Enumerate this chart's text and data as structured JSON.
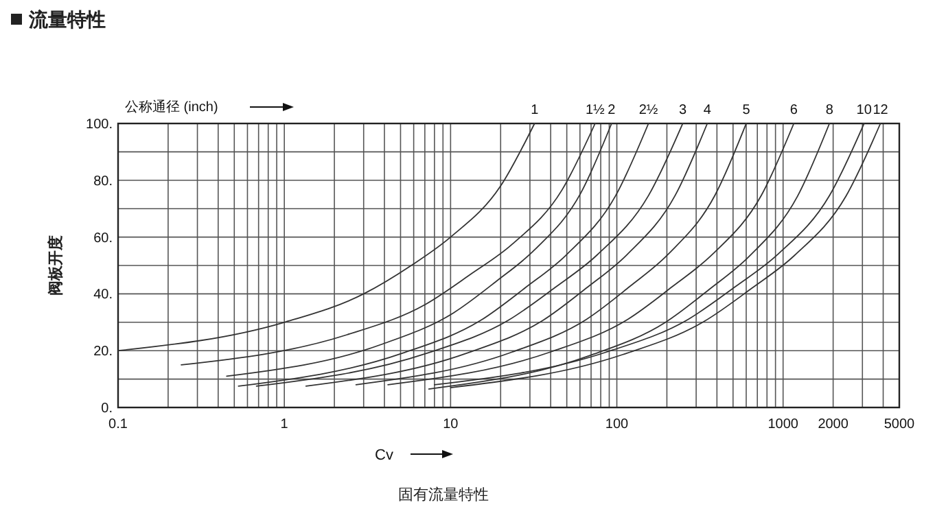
{
  "chart_data": {
    "type": "line",
    "title": "流量特性",
    "xlabel": "Cv",
    "ylabel": "阀板开度",
    "legend_title": "公称通径 (inch)",
    "annotations": [
      "固有流量特性"
    ],
    "log": "x",
    "grid": true,
    "xlim": [
      0.1,
      5000
    ],
    "ylim": [
      0,
      100
    ],
    "xticks": [
      0.1,
      {
        "value": 0.2,
        "label": null
      },
      {
        "value": 0.3,
        "label": null
      },
      {
        "value": 0.4,
        "label": null
      },
      {
        "value": 0.5,
        "label": null
      },
      {
        "value": 0.6,
        "label": null
      },
      {
        "value": 0.7,
        "label": null
      },
      {
        "value": 0.8,
        "label": null
      },
      {
        "value": 0.9,
        "label": null
      },
      1,
      {
        "value": 2,
        "label": null
      },
      {
        "value": 3,
        "label": null
      },
      {
        "value": 4,
        "label": null
      },
      {
        "value": 5,
        "label": null
      },
      {
        "value": 6,
        "label": null
      },
      {
        "value": 7,
        "label": null
      },
      {
        "value": 8,
        "label": null
      },
      {
        "value": 9,
        "label": null
      },
      10,
      {
        "value": 20,
        "label": null
      },
      {
        "value": 30,
        "label": null
      },
      {
        "value": 40,
        "label": null
      },
      {
        "value": 50,
        "label": null
      },
      {
        "value": 60,
        "label": null
      },
      {
        "value": 70,
        "label": null
      },
      {
        "value": 80,
        "label": null
      },
      {
        "value": 90,
        "label": null
      },
      100,
      {
        "value": 200,
        "label": null
      },
      {
        "value": 300,
        "label": null
      },
      {
        "value": 400,
        "label": null
      },
      {
        "value": 500,
        "label": null
      },
      {
        "value": 600,
        "label": null
      },
      {
        "value": 700,
        "label": null
      },
      {
        "value": 800,
        "label": null
      },
      {
        "value": 900,
        "label": null
      },
      1000,
      2000,
      {
        "value": 3000,
        "label": null
      },
      {
        "value": 4000,
        "label": null
      },
      5000
    ],
    "yticks": [
      {
        "value": 0,
        "label": "0."
      },
      {
        "value": 10,
        "label": null
      },
      {
        "value": 20,
        "label": "20."
      },
      {
        "value": 30,
        "label": null
      },
      {
        "value": 40,
        "label": "40."
      },
      {
        "value": 50,
        "label": null
      },
      {
        "value": 60,
        "label": "60."
      },
      {
        "value": 70,
        "label": null
      },
      {
        "value": 80,
        "label": "80."
      },
      {
        "value": 90,
        "label": null
      },
      {
        "value": 100,
        "label": "100."
      }
    ],
    "series": [
      {
        "name": "1",
        "color": "#333333",
        "x": [
          0.1,
          1,
          3,
          5.8,
          10,
          20,
          32
        ],
        "values": [
          20,
          30,
          40,
          50,
          60,
          78,
          100
        ]
      },
      {
        "name": "1½",
        "color": "#333333",
        "x": [
          0.24,
          2.38,
          7.06,
          13.2,
          23.5,
          46.8,
          74
        ],
        "values": [
          15,
          25.6,
          36.3,
          46.9,
          57.5,
          76.6,
          100
        ]
      },
      {
        "name": "2",
        "color": "#333333",
        "x": [
          0.45,
          3.79,
          10.4,
          18.8,
          32,
          60.7,
          93
        ],
        "values": [
          11,
          22.1,
          33.3,
          44.4,
          55.5,
          75.5,
          100
        ]
      },
      {
        "name": "2½",
        "color": "#333333",
        "x": [
          0.53,
          5.13,
          15.1,
          28.2,
          49.8,
          98.4,
          155
        ],
        "values": [
          7.5,
          19.1,
          30.6,
          42.2,
          53.8,
          74.6,
          100
        ]
      },
      {
        "name": "3",
        "color": "#333333",
        "x": [
          0.68,
          7.21,
          22.1,
          42.4,
          76.4,
          155,
          249
        ],
        "values": [
          7.5,
          19.1,
          30.6,
          42.2,
          53.8,
          74.6,
          100
        ]
      },
      {
        "name": "4",
        "color": "#333333",
        "x": [
          1.35,
          12.5,
          35.8,
          66.1,
          115,
          224,
          350
        ],
        "values": [
          7.5,
          19.1,
          30.6,
          42.2,
          53.8,
          74.6,
          100
        ]
      },
      {
        "name": "5",
        "color": "#333333",
        "x": [
          2.7,
          23.4,
          65.5,
          119,
          204,
          389,
          600
        ],
        "values": [
          8,
          19.5,
          31,
          42.5,
          54,
          74.7,
          100
        ]
      },
      {
        "name": "6",
        "color": "#333333",
        "x": [
          4.2,
          39.7,
          116,
          215,
          377,
          740,
          1160
        ],
        "values": [
          8,
          19.5,
          31,
          42.5,
          54,
          74.7,
          100
        ]
      },
      {
        "name": "8",
        "color": "#333333",
        "x": [
          7.4,
          68.1,
          195,
          360,
          627,
          1219,
          1900
        ],
        "values": [
          6.5,
          18.2,
          29.9,
          41.6,
          53.3,
          74.3,
          100
        ]
      },
      {
        "name": "10",
        "color": "#333333",
        "x": [
          8,
          86.5,
          268,
          515,
          933,
          1905,
          3070
        ],
        "values": [
          8,
          19.5,
          31,
          42.5,
          54,
          74.7,
          100
        ]
      },
      {
        "name": "12",
        "color": "#333333",
        "x": [
          10,
          108,
          335,
          645,
          1169,
          2388,
          3850
        ],
        "values": [
          7,
          18.6,
          30.3,
          41.9,
          53.5,
          74.4,
          100
        ]
      }
    ]
  }
}
